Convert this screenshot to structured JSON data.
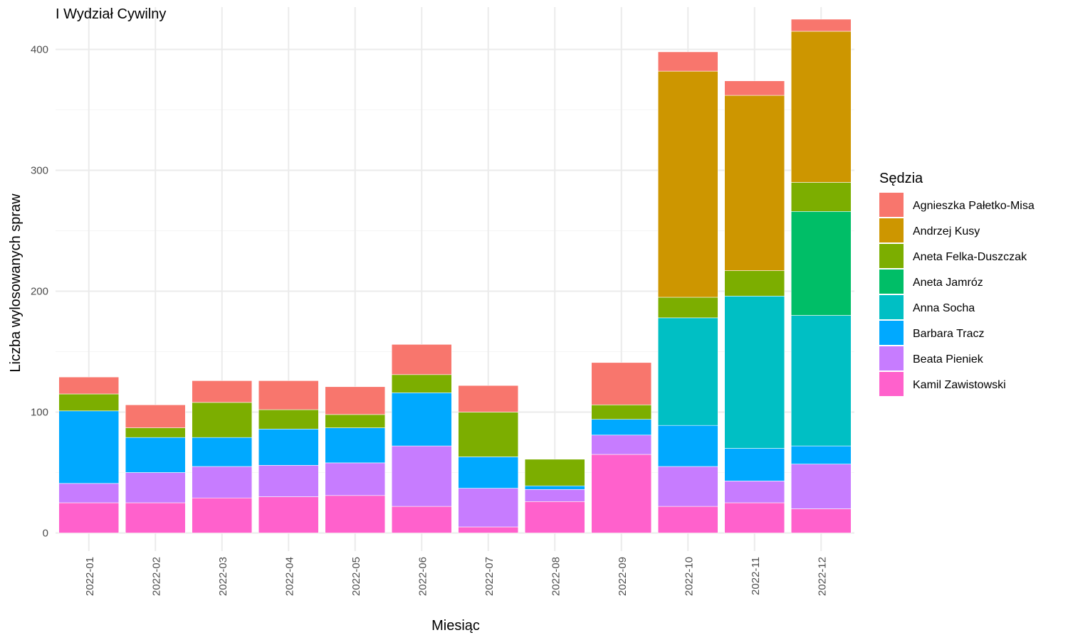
{
  "chart_data": {
    "type": "bar",
    "stacked": true,
    "title": "I Wydział Cywilny",
    "xlabel": "Miesiąc",
    "ylabel": "Liczba wylosowanych spraw",
    "ylim": [
      -15,
      435
    ],
    "y_ticks": [
      0,
      100,
      200,
      300,
      400
    ],
    "grid": true,
    "legend": {
      "title": "Sędzia",
      "placement": "right"
    },
    "categories": [
      "2022-01",
      "2022-02",
      "2022-03",
      "2022-04",
      "2022-05",
      "2022-06",
      "2022-07",
      "2022-08",
      "2022-09",
      "2022-10",
      "2022-11",
      "2022-12"
    ],
    "stack_order_bottom_to_top": [
      "Kamil Zawistowski",
      "Beata Pieniek",
      "Barbara Tracz",
      "Anna Socha",
      "Aneta Jamróz",
      "Aneta Felka-Duszczak",
      "Andrzej Kusy",
      "Agnieszka Pałetko-Misa"
    ],
    "series": [
      {
        "name": "Agnieszka Pałetko-Misa",
        "color": "#F8766D",
        "values": [
          14,
          19,
          18,
          24,
          23,
          25,
          22,
          0,
          35,
          16,
          12,
          10
        ]
      },
      {
        "name": "Andrzej Kusy",
        "color": "#CD9600",
        "values": [
          0,
          0,
          0,
          0,
          0,
          0,
          0,
          0,
          0,
          187,
          145,
          125
        ]
      },
      {
        "name": "Aneta Felka-Duszczak",
        "color": "#7CAE00",
        "values": [
          14,
          8,
          29,
          16,
          11,
          15,
          37,
          22,
          12,
          17,
          21,
          24
        ]
      },
      {
        "name": "Aneta Jamróz",
        "color": "#00BE67",
        "values": [
          0,
          0,
          0,
          0,
          0,
          0,
          0,
          0,
          0,
          0,
          0,
          86
        ]
      },
      {
        "name": "Anna Socha",
        "color": "#00BFC4",
        "values": [
          0,
          0,
          0,
          0,
          0,
          0,
          0,
          0,
          0,
          89,
          126,
          108
        ]
      },
      {
        "name": "Barbara Tracz",
        "color": "#00A9FF",
        "values": [
          60,
          29,
          24,
          30,
          29,
          44,
          26,
          3,
          13,
          34,
          27,
          15
        ]
      },
      {
        "name": "Beata Pieniek",
        "color": "#C77CFF",
        "values": [
          16,
          25,
          26,
          26,
          27,
          50,
          32,
          10,
          16,
          33,
          18,
          37
        ]
      },
      {
        "name": "Kamil Zawistowski",
        "color": "#FF61CC",
        "values": [
          25,
          25,
          29,
          30,
          31,
          22,
          5,
          26,
          65,
          22,
          25,
          20
        ]
      }
    ]
  }
}
